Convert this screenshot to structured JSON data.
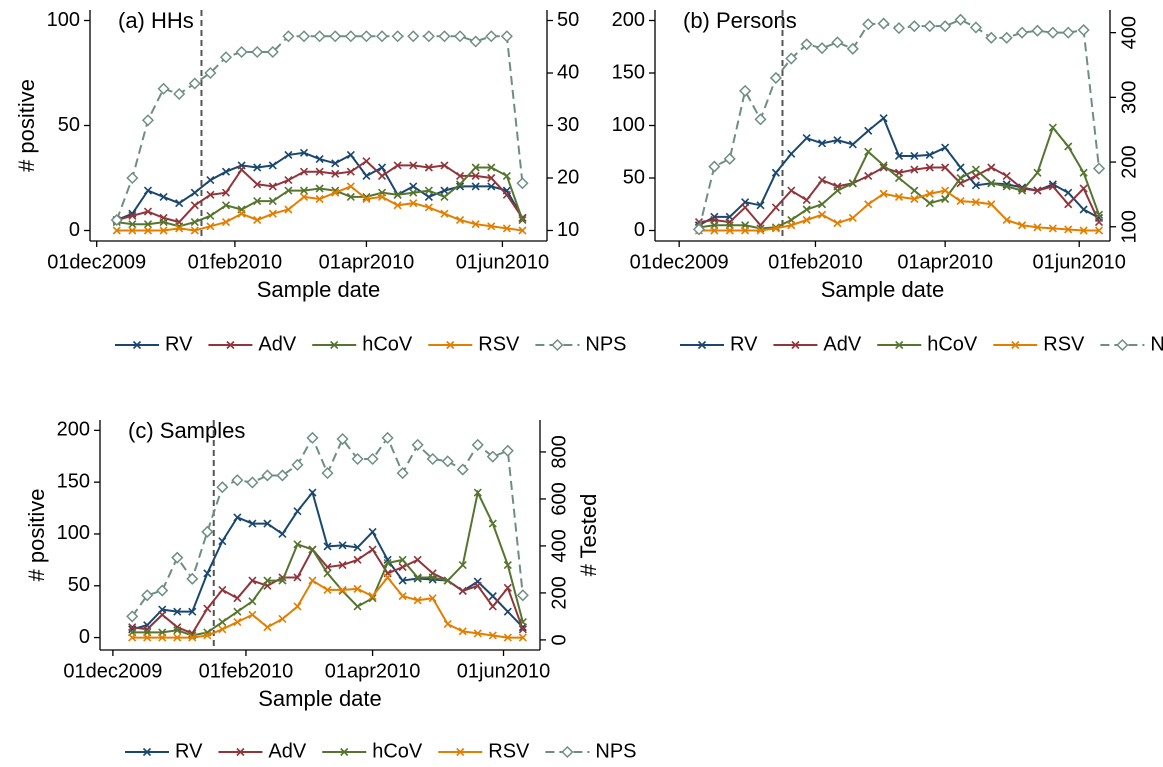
{
  "chart_data": [
    {
      "type": "line",
      "title": "(a) HHs",
      "xlabel": "Sample date",
      "ylabel": "# positive",
      "x": [
        "2009-12-10",
        "2009-12-17",
        "2009-12-24",
        "2009-12-31",
        "2010-01-07",
        "2010-01-14",
        "2010-01-21",
        "2010-01-28",
        "2010-02-04",
        "2010-02-11",
        "2010-02-18",
        "2010-02-25",
        "2010-03-04",
        "2010-03-11",
        "2010-03-18",
        "2010-03-25",
        "2010-04-01",
        "2010-04-08",
        "2010-04-15",
        "2010-04-22",
        "2010-04-29",
        "2010-05-06",
        "2010-05-13",
        "2010-05-20",
        "2010-05-27",
        "2010-06-03",
        "2010-06-10"
      ],
      "xlim": [
        "2009-11-28",
        "2010-06-21"
      ],
      "xticks": [
        {
          "value": "2009-12-01",
          "label": "01dec2009"
        },
        {
          "value": "2010-02-01",
          "label": "01feb2010"
        },
        {
          "value": "2010-04-01",
          "label": "01apr2010"
        },
        {
          "value": "2010-06-01",
          "label": "01jun2010"
        }
      ],
      "ylim": [
        -5,
        105
      ],
      "yticks": [
        0,
        50,
        100
      ],
      "y2lim": [
        8,
        52
      ],
      "y2ticks": [
        10,
        20,
        30,
        40,
        50
      ],
      "vline": "2010-01-17",
      "series": [
        {
          "name": "RV",
          "color": "#1a476f",
          "marker": "x",
          "values": [
            5,
            8,
            19,
            16,
            13,
            18,
            24,
            28,
            31,
            30,
            31,
            36,
            37,
            34,
            32,
            36,
            26,
            30,
            17,
            21,
            16,
            19,
            21,
            21,
            21,
            19,
            6
          ]
        },
        {
          "name": "AdV",
          "color": "#90353b",
          "marker": "x",
          "values": [
            5,
            7,
            9,
            6,
            4,
            12,
            17,
            18,
            29,
            22,
            21,
            24,
            28,
            28,
            27,
            28,
            33,
            26,
            31,
            31,
            30,
            31,
            26,
            26,
            25,
            17,
            6
          ]
        },
        {
          "name": "hCoV",
          "color": "#55752f",
          "marker": "x",
          "values": [
            4,
            3,
            3,
            4,
            2,
            4,
            7,
            12,
            10,
            14,
            14,
            19,
            19,
            20,
            19,
            16,
            16,
            18,
            17,
            18,
            19,
            16,
            22,
            30,
            30,
            26,
            5
          ]
        },
        {
          "name": "RSV",
          "color": "#e37e00",
          "marker": "x",
          "values": [
            0,
            0,
            0,
            0,
            1,
            0,
            2,
            4,
            8,
            5,
            8,
            10,
            16,
            15,
            18,
            21,
            15,
            16,
            12,
            13,
            11,
            8,
            5,
            3,
            2,
            1,
            0
          ]
        },
        {
          "name": "NPS",
          "color": "#6e8e84",
          "marker": "diamond",
          "dash": true,
          "axis": "y2",
          "values": [
            12,
            20,
            31,
            37,
            36,
            38,
            40,
            43,
            44,
            44,
            44,
            47,
            47,
            47,
            47,
            47,
            47,
            47,
            47,
            47,
            47,
            47,
            47,
            46,
            47,
            47,
            19
          ]
        }
      ]
    },
    {
      "type": "line",
      "title": "(b) Persons",
      "xlabel": "Sample date",
      "x": [
        "2009-12-10",
        "2009-12-17",
        "2009-12-24",
        "2009-12-31",
        "2010-01-07",
        "2010-01-14",
        "2010-01-21",
        "2010-01-28",
        "2010-02-04",
        "2010-02-11",
        "2010-02-18",
        "2010-02-25",
        "2010-03-04",
        "2010-03-11",
        "2010-03-18",
        "2010-03-25",
        "2010-04-01",
        "2010-04-08",
        "2010-04-15",
        "2010-04-22",
        "2010-04-29",
        "2010-05-06",
        "2010-05-13",
        "2010-05-20",
        "2010-05-27",
        "2010-06-03",
        "2010-06-10"
      ],
      "xlim": [
        "2009-11-20",
        "2010-06-15"
      ],
      "xticks": [
        {
          "value": "2009-12-01",
          "label": "01dec2009"
        },
        {
          "value": "2010-02-01",
          "label": "01feb2010"
        },
        {
          "value": "2010-04-01",
          "label": "01apr2010"
        },
        {
          "value": "2010-06-01",
          "label": "01jun2010"
        }
      ],
      "ylim": [
        -10,
        210
      ],
      "yticks": [
        0,
        50,
        100,
        150,
        200
      ],
      "y2lim": [
        78,
        435
      ],
      "y2ticks": [
        100,
        200,
        300,
        400
      ],
      "vline": "2010-01-17",
      "series": [
        {
          "name": "RV",
          "color": "#1a476f",
          "marker": "x",
          "values": [
            5,
            13,
            13,
            27,
            24,
            55,
            73,
            88,
            83,
            86,
            82,
            95,
            107,
            71,
            71,
            72,
            79,
            60,
            43,
            45,
            44,
            41,
            38,
            44,
            36,
            20,
            12
          ]
        },
        {
          "name": "AdV",
          "color": "#90353b",
          "marker": "x",
          "values": [
            8,
            10,
            8,
            22,
            5,
            22,
            38,
            29,
            48,
            42,
            45,
            52,
            60,
            55,
            58,
            60,
            60,
            45,
            52,
            60,
            52,
            40,
            38,
            42,
            25,
            40,
            8
          ]
        },
        {
          "name": "hCoV",
          "color": "#55752f",
          "marker": "x",
          "values": [
            3,
            5,
            5,
            5,
            2,
            3,
            10,
            20,
            25,
            38,
            45,
            75,
            62,
            50,
            38,
            26,
            30,
            50,
            58,
            45,
            42,
            38,
            55,
            98,
            80,
            55,
            15
          ]
        },
        {
          "name": "RSV",
          "color": "#e37e00",
          "marker": "x",
          "values": [
            0,
            0,
            0,
            0,
            0,
            2,
            5,
            10,
            15,
            7,
            12,
            25,
            35,
            32,
            30,
            35,
            38,
            28,
            27,
            25,
            10,
            5,
            3,
            2,
            1,
            0,
            0
          ]
        },
        {
          "name": "NPS",
          "color": "#6e8e84",
          "marker": "diamond",
          "dash": true,
          "axis": "y2",
          "values": [
            96,
            193,
            205,
            310,
            266,
            330,
            360,
            382,
            376,
            385,
            375,
            413,
            414,
            407,
            410,
            410,
            410,
            420,
            408,
            392,
            392,
            400,
            403,
            400,
            400,
            404,
            190
          ]
        }
      ]
    },
    {
      "type": "line",
      "title": "(c) Samples",
      "xlabel": "Sample date",
      "ylabel": "# positive",
      "y2label": "# Tested",
      "x": [
        "2009-12-10",
        "2009-12-17",
        "2009-12-24",
        "2009-12-31",
        "2010-01-07",
        "2010-01-14",
        "2010-01-21",
        "2010-01-28",
        "2010-02-04",
        "2010-02-11",
        "2010-02-18",
        "2010-02-25",
        "2010-03-04",
        "2010-03-11",
        "2010-03-18",
        "2010-03-25",
        "2010-04-01",
        "2010-04-08",
        "2010-04-15",
        "2010-04-22",
        "2010-04-29",
        "2010-05-06",
        "2010-05-13",
        "2010-05-20",
        "2010-05-27",
        "2010-06-03",
        "2010-06-10"
      ],
      "xlim": [
        "2009-11-25",
        "2010-06-18"
      ],
      "xticks": [
        {
          "value": "2009-12-01",
          "label": "01dec2009"
        },
        {
          "value": "2010-02-01",
          "label": "01feb2010"
        },
        {
          "value": "2010-04-01",
          "label": "01apr2010"
        },
        {
          "value": "2010-06-01",
          "label": "01jun2010"
        }
      ],
      "ylim": [
        -12,
        210
      ],
      "yticks": [
        0,
        50,
        100,
        150,
        200
      ],
      "y2lim": [
        -43,
        936
      ],
      "y2ticks": [
        0,
        200,
        400,
        600,
        800
      ],
      "vline": "2010-01-17",
      "series": [
        {
          "name": "RV",
          "color": "#1a476f",
          "marker": "x",
          "values": [
            8,
            12,
            27,
            25,
            25,
            62,
            93,
            116,
            110,
            110,
            100,
            122,
            140,
            88,
            89,
            87,
            102,
            75,
            55,
            57,
            56,
            55,
            45,
            54,
            40,
            25,
            10
          ]
        },
        {
          "name": "AdV",
          "color": "#90353b",
          "marker": "x",
          "values": [
            10,
            8,
            22,
            10,
            4,
            28,
            46,
            38,
            55,
            50,
            58,
            58,
            85,
            68,
            70,
            75,
            85,
            62,
            68,
            75,
            62,
            55,
            45,
            50,
            30,
            48,
            8
          ]
        },
        {
          "name": "hCoV",
          "color": "#55752f",
          "marker": "x",
          "values": [
            5,
            5,
            5,
            7,
            2,
            5,
            15,
            25,
            35,
            55,
            55,
            90,
            85,
            62,
            45,
            30,
            38,
            72,
            75,
            58,
            58,
            55,
            70,
            140,
            110,
            70,
            15
          ]
        },
        {
          "name": "RSV",
          "color": "#e37e00",
          "marker": "x",
          "values": [
            0,
            0,
            0,
            0,
            0,
            2,
            8,
            15,
            22,
            10,
            18,
            30,
            55,
            46,
            46,
            47,
            40,
            58,
            40,
            36,
            38,
            13,
            6,
            4,
            2,
            0,
            0
          ]
        },
        {
          "name": "NPS",
          "color": "#6e8e84",
          "marker": "diamond",
          "dash": true,
          "axis": "y2",
          "values": [
            100,
            190,
            210,
            350,
            260,
            460,
            650,
            680,
            670,
            700,
            700,
            745,
            860,
            710,
            855,
            770,
            770,
            860,
            710,
            830,
            770,
            760,
            725,
            830,
            780,
            805,
            190
          ]
        }
      ]
    }
  ]
}
